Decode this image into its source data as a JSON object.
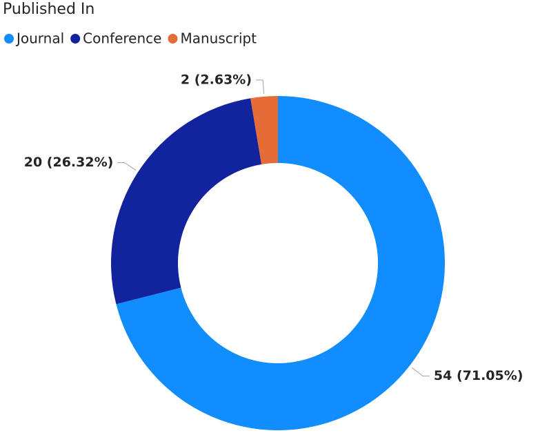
{
  "chart_data": {
    "type": "pie",
    "title": "Published In",
    "categories": [
      "Journal",
      "Conference",
      "Manuscript"
    ],
    "values": [
      54,
      20,
      2
    ],
    "value_labels": [
      "54 (71.05%)",
      "20 (26.32%)",
      "2 (2.63%)"
    ],
    "colors": [
      "#118dff",
      "#12239e",
      "#e66c37"
    ]
  }
}
